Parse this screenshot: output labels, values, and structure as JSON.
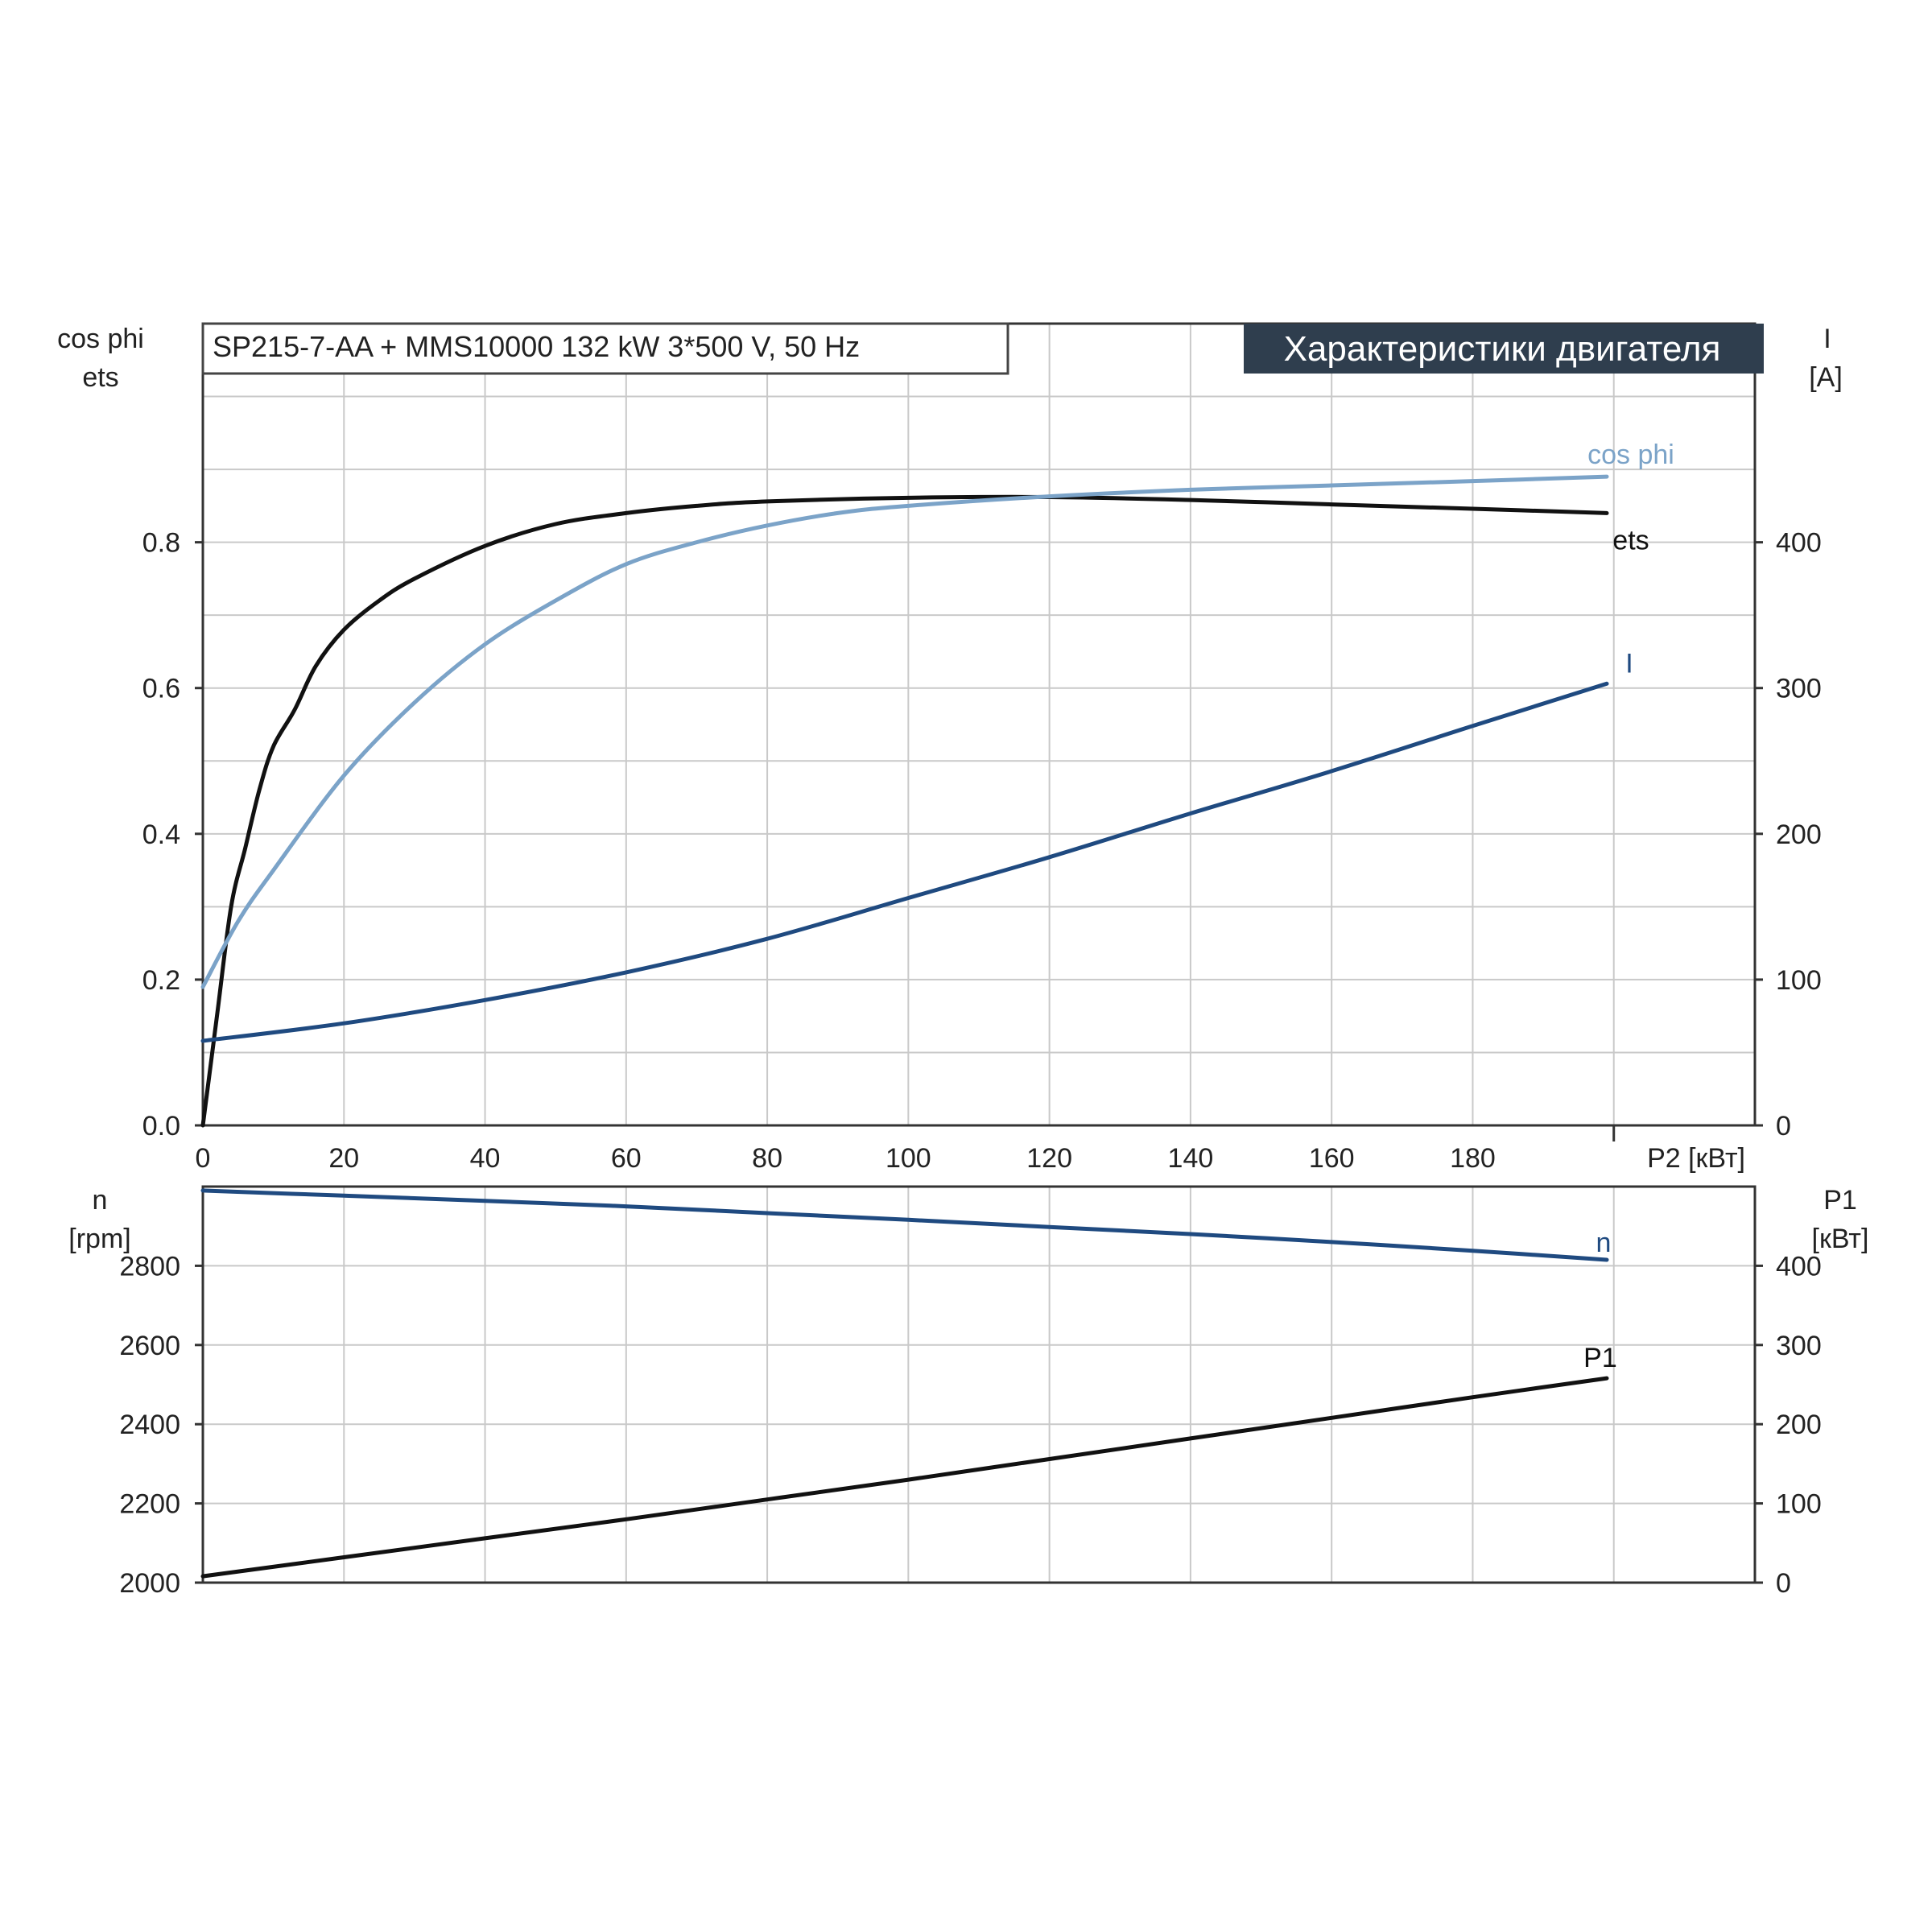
{
  "header": {
    "title": "SP215-7-AA + MMS10000   132 kW   3*500 V, 50 Hz",
    "badge": "Характеристики двигателя"
  },
  "colors": {
    "ets": "#111111",
    "cos_phi": "#7ba3c8",
    "I": "#1f4a80",
    "n": "#1f4a80",
    "P1": "#111111",
    "grid": "#c9c9c9",
    "badge_bg": "#2f3e4e"
  },
  "chart_data": [
    {
      "type": "line",
      "x_axis": {
        "label": "P2 [кВт]",
        "ticks": [
          "0",
          "20",
          "40",
          "60",
          "80",
          "100",
          "120",
          "140",
          "160",
          "180"
        ],
        "range": [
          0,
          220
        ]
      },
      "left_axis": {
        "label_line1": "cos phi",
        "label_line2": "ets",
        "ticks": [
          "0.0",
          "0.2",
          "0.4",
          "0.6",
          "0.8"
        ],
        "range": [
          0,
          1.1
        ]
      },
      "right_axis": {
        "label_line1": "I",
        "label_line2": "[A]",
        "ticks": [
          "0",
          "100",
          "200",
          "300",
          "400"
        ],
        "range": [
          0,
          550
        ]
      },
      "grid": true,
      "series": [
        {
          "name": "ets",
          "axis": "left",
          "x": [
            0,
            2,
            4,
            6,
            8,
            10,
            13,
            16,
            20,
            25,
            30,
            40,
            50,
            60,
            70,
            80,
            100,
            120,
            140,
            160,
            180,
            199
          ],
          "values": [
            0.0,
            0.15,
            0.3,
            0.38,
            0.46,
            0.52,
            0.57,
            0.63,
            0.68,
            0.72,
            0.75,
            0.795,
            0.825,
            0.84,
            0.85,
            0.856,
            0.861,
            0.862,
            0.858,
            0.852,
            0.846,
            0.84
          ]
        },
        {
          "name": "cos phi",
          "axis": "left",
          "x": [
            0,
            5,
            10,
            20,
            30,
            40,
            50,
            60,
            70,
            80,
            90,
            100,
            120,
            140,
            160,
            180,
            199
          ],
          "values": [
            0.19,
            0.28,
            0.35,
            0.48,
            0.58,
            0.66,
            0.72,
            0.77,
            0.8,
            0.823,
            0.84,
            0.85,
            0.863,
            0.872,
            0.878,
            0.884,
            0.89
          ]
        },
        {
          "name": "I",
          "axis": "right",
          "x": [
            0,
            20,
            40,
            60,
            80,
            100,
            120,
            140,
            160,
            180,
            199
          ],
          "values": [
            58,
            70,
            86,
            105,
            128,
            156,
            184,
            214,
            243,
            274,
            303
          ]
        }
      ]
    },
    {
      "type": "line",
      "x_axis": {
        "range": [
          0,
          220
        ]
      },
      "left_axis": {
        "label_line1": "n",
        "label_line2": "[rpm]",
        "ticks": [
          "2000",
          "2200",
          "2400",
          "2600",
          "2800"
        ],
        "range": [
          2000,
          3000
        ]
      },
      "right_axis": {
        "label_line1": "P1",
        "label_line2": "[кВт]",
        "ticks": [
          "0",
          "100",
          "200",
          "300",
          "400"
        ],
        "range": [
          0,
          500
        ]
      },
      "grid": true,
      "series": [
        {
          "name": "n",
          "axis": "left",
          "x": [
            0,
            20,
            40,
            60,
            80,
            100,
            120,
            140,
            160,
            180,
            199
          ],
          "values": [
            2990,
            2977,
            2964,
            2950,
            2933,
            2916,
            2898,
            2880,
            2860,
            2838,
            2815
          ]
        },
        {
          "name": "P1",
          "axis": "right",
          "x": [
            0,
            20,
            40,
            60,
            80,
            100,
            120,
            140,
            160,
            180,
            199
          ],
          "values": [
            8,
            32,
            56,
            80,
            105,
            130,
            156,
            182,
            208,
            234,
            258
          ]
        }
      ]
    }
  ]
}
